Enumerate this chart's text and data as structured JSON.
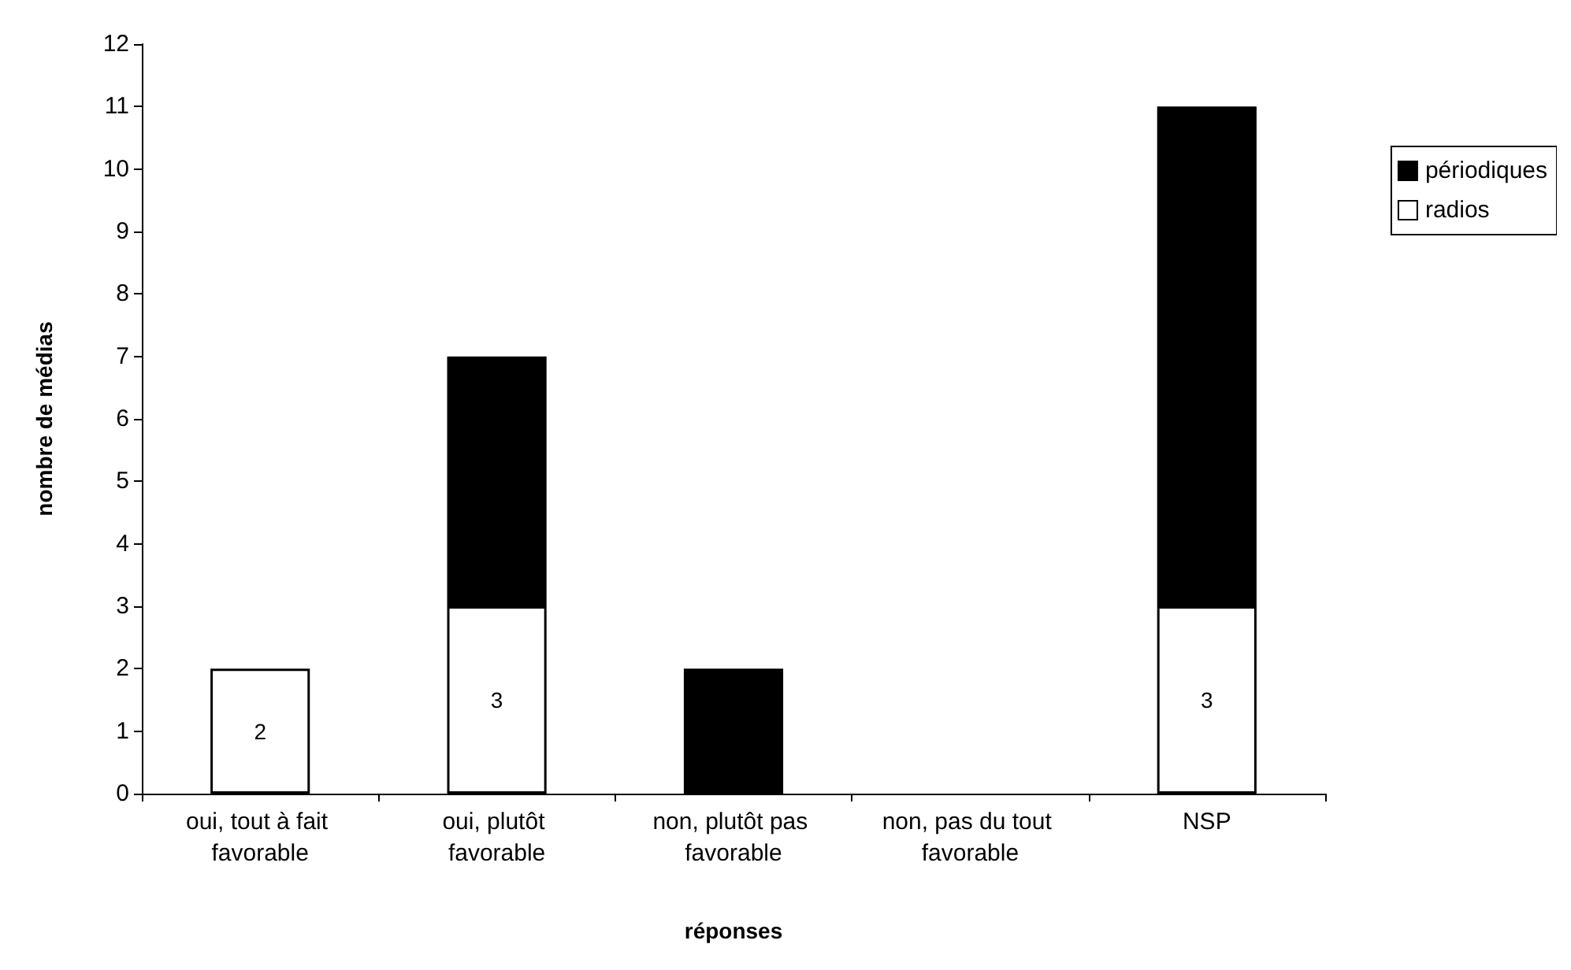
{
  "chart_data": {
    "type": "bar",
    "stacked": true,
    "xlabel": "réponses",
    "ylabel": "nombre de médias",
    "categories": [
      "oui, tout à fait favorable",
      "oui, plutôt favorable",
      "non, plutôt pas favorable",
      "non, pas du tout favorable",
      "NSP"
    ],
    "series": [
      {
        "name": "radios",
        "color": "#ffffff",
        "values": [
          2,
          3,
          0,
          0,
          3
        ],
        "value_labels": [
          "2",
          "3",
          null,
          null,
          "3"
        ]
      },
      {
        "name": "périodiques",
        "color": "#000000",
        "values": [
          0,
          4,
          2,
          0,
          8
        ]
      }
    ],
    "ylim": [
      0,
      12
    ],
    "yticks": [
      0,
      1,
      2,
      3,
      4,
      5,
      6,
      7,
      8,
      9,
      10,
      11,
      12
    ],
    "grid": false,
    "legend": "right"
  }
}
